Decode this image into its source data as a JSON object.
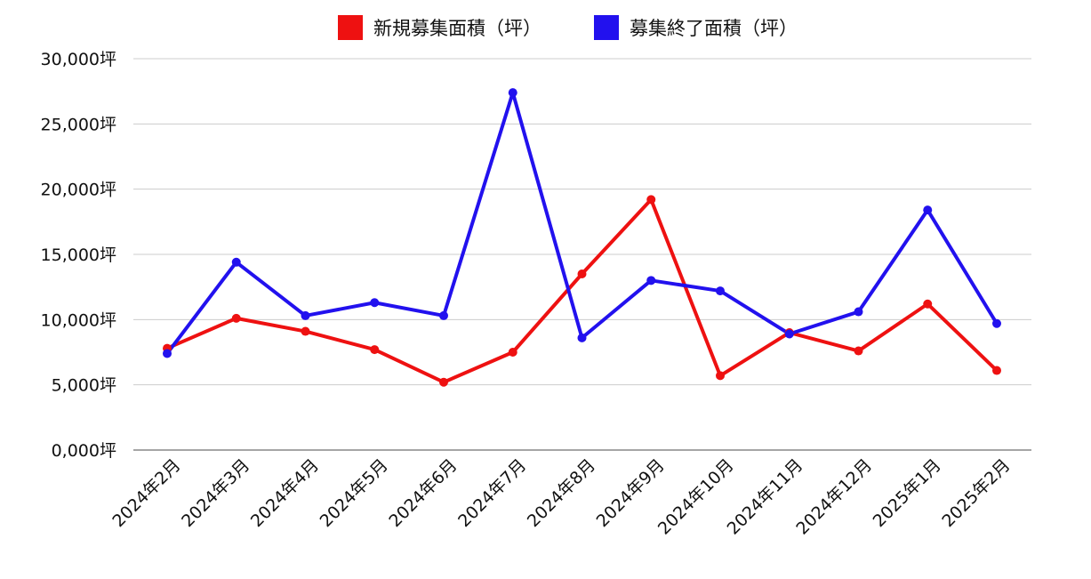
{
  "chart_data": {
    "type": "line",
    "title": "",
    "xlabel": "",
    "ylabel": "",
    "ylim": [
      0,
      30000
    ],
    "grid": true,
    "legend_position": "top",
    "y_tick_labels": [
      "0,000坪",
      "5,000坪",
      "10,000坪",
      "15,000坪",
      "20,000坪",
      "25,000坪",
      "30,000坪"
    ],
    "categories": [
      "2024年2月",
      "2024年3月",
      "2024年4月",
      "2024年5月",
      "2024年6月",
      "2024年7月",
      "2024年8月",
      "2024年9月",
      "2024年10月",
      "2024年11月",
      "2024年12月",
      "2025年1月",
      "2025年2月"
    ],
    "series": [
      {
        "name": "新規募集面積（坪）",
        "color": "#ee1111",
        "values": [
          7800,
          10100,
          9100,
          7700,
          5200,
          7500,
          13500,
          19200,
          5700,
          9000,
          7600,
          11200,
          6100
        ]
      },
      {
        "name": "募集終了面積（坪）",
        "color": "#2211ee",
        "values": [
          7400,
          14400,
          10300,
          11300,
          10300,
          27400,
          8600,
          13000,
          12200,
          8900,
          10600,
          18400,
          9700
        ]
      }
    ]
  }
}
